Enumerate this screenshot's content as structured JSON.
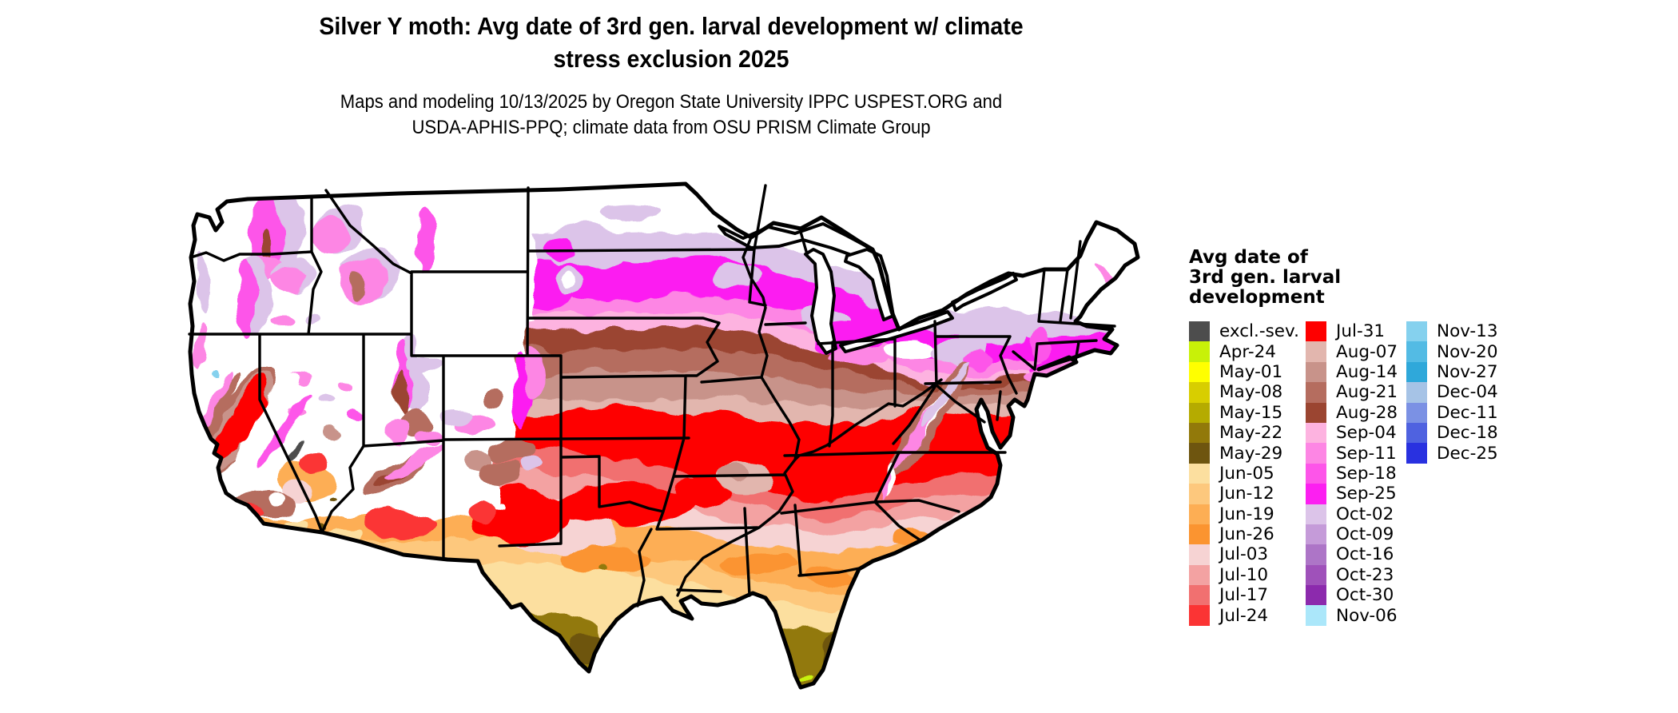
{
  "header": {
    "title_line1": "Silver Y moth: Avg date of 3rd gen. larval development w/ climate",
    "title_line2": "stress exclusion 2025",
    "subtitle_line1": "Maps and modeling 10/13/2025 by Oregon State University IPPC USPEST.ORG and",
    "subtitle_line2": "USDA-APHIS-PPQ; climate data from OSU PRISM Climate Group"
  },
  "legend": {
    "title_lines": [
      "Avg date of",
      "3rd gen. larval",
      "development"
    ],
    "columns": [
      [
        {
          "label": "excl.-sev.",
          "color": "#4d4d4d"
        },
        {
          "label": "Apr-24",
          "color": "#c8f108"
        },
        {
          "label": "May-01",
          "color": "#ffff00"
        },
        {
          "label": "May-08",
          "color": "#d8ce00"
        },
        {
          "label": "May-15",
          "color": "#b5ab00"
        },
        {
          "label": "May-22",
          "color": "#92790a"
        },
        {
          "label": "May-29",
          "color": "#6e550f"
        },
        {
          "label": "Jun-05",
          "color": "#fcdf9f"
        },
        {
          "label": "Jun-12",
          "color": "#fdc87d"
        },
        {
          "label": "Jun-19",
          "color": "#fdae54"
        },
        {
          "label": "Jun-26",
          "color": "#fb9430"
        },
        {
          "label": "Jul-03",
          "color": "#f6d3d3"
        },
        {
          "label": "Jul-10",
          "color": "#f3a2a2"
        },
        {
          "label": "Jul-17",
          "color": "#f17070"
        },
        {
          "label": "Jul-24",
          "color": "#fb3434"
        }
      ],
      [
        {
          "label": "Jul-31",
          "color": "#fe0000"
        },
        {
          "label": "Aug-07",
          "color": "#e2b6ae"
        },
        {
          "label": "Aug-14",
          "color": "#c8938a"
        },
        {
          "label": "Aug-21",
          "color": "#b56d5f"
        },
        {
          "label": "Aug-28",
          "color": "#9b4531"
        },
        {
          "label": "Sep-04",
          "color": "#fdb3e0"
        },
        {
          "label": "Sep-11",
          "color": "#fd86e4"
        },
        {
          "label": "Sep-18",
          "color": "#fd55e9"
        },
        {
          "label": "Sep-25",
          "color": "#fc1ff1"
        },
        {
          "label": "Oct-02",
          "color": "#dcc4e9"
        },
        {
          "label": "Oct-09",
          "color": "#c59bd9"
        },
        {
          "label": "Oct-16",
          "color": "#ad75c7"
        },
        {
          "label": "Oct-23",
          "color": "#9f51ba"
        },
        {
          "label": "Oct-30",
          "color": "#8c2aad"
        },
        {
          "label": "Nov-06",
          "color": "#abe7fa"
        }
      ],
      [
        {
          "label": "Nov-13",
          "color": "#85d1ee"
        },
        {
          "label": "Nov-20",
          "color": "#53bbe4"
        },
        {
          "label": "Nov-27",
          "color": "#2fa8da"
        },
        {
          "label": "Dec-04",
          "color": "#a6c3e6"
        },
        {
          "label": "Dec-11",
          "color": "#7b91e4"
        },
        {
          "label": "Dec-18",
          "color": "#4f62e0"
        },
        {
          "label": "Dec-25",
          "color": "#2931e0"
        }
      ]
    ]
  },
  "map": {
    "region_shown": "contiguous United States",
    "no_data_color": "#ffffff",
    "border_color": "#000000"
  },
  "palette": {
    "white": "#ffffff",
    "excl_sev": "#4d4d4d",
    "apr24": "#c8f108",
    "may01": "#ffff00",
    "may08": "#d8ce00",
    "may15": "#b5ab00",
    "may22": "#92790a",
    "may29": "#6e550f",
    "jun05": "#fcdf9f",
    "jun12": "#fdc87d",
    "jun19": "#fdae54",
    "jun26": "#fb9430",
    "jul03": "#f6d3d3",
    "jul10": "#f3a2a2",
    "jul17": "#f17070",
    "jul24": "#fb3434",
    "jul31": "#fe0000",
    "aug07": "#e2b6ae",
    "aug14": "#c8938a",
    "aug21": "#b56d5f",
    "aug28": "#9b4531",
    "sep04": "#fdb3e0",
    "sep11": "#fd86e4",
    "sep18": "#fd55e9",
    "sep25": "#fc1ff1",
    "oct02": "#dcc4e9",
    "oct09": "#c59bd9",
    "oct16": "#ad75c7",
    "oct23": "#9f51ba",
    "oct30": "#8c2aad",
    "nov06": "#abe7fa",
    "nov13": "#85d1ee",
    "nov20": "#53bbe4"
  }
}
